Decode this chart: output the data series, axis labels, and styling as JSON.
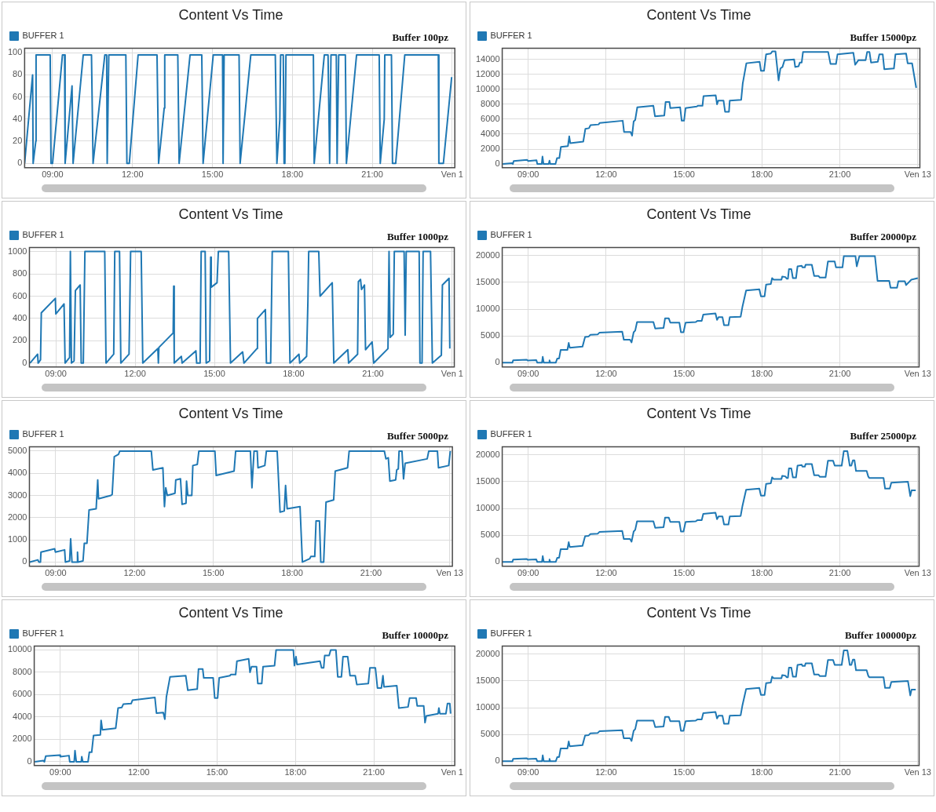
{
  "chart_data": [
    {
      "type": "line",
      "title": "Content Vs Time",
      "subtitle": "Buffer 100pz",
      "legend": "top left",
      "grid": true,
      "xlim": [
        7.95,
        24.1
      ],
      "xticks": [
        {
          "value": 9,
          "label": "09:00"
        },
        {
          "value": 12,
          "label": "12:00"
        },
        {
          "value": 15,
          "label": "15:00"
        },
        {
          "value": 18,
          "label": "18:00"
        },
        {
          "value": 21,
          "label": "21:00"
        },
        {
          "value": 24,
          "label": "Ven 1"
        }
      ],
      "ylim": [
        -4,
        104
      ],
      "yticks": [
        0,
        20,
        40,
        60,
        80,
        100
      ],
      "series": [
        {
          "name": "BUFFER 1",
          "color": "#1f78b4",
          "x": [
            7.95,
            8.25,
            8.27,
            8.37,
            8.38,
            8.91,
            8.94,
            9.0,
            9.37,
            9.45,
            9.47,
            9.73,
            9.77,
            10.15,
            10.46,
            10.52,
            10.96,
            11.03,
            11.05,
            11.11,
            11.75,
            11.79,
            11.88,
            12.21,
            12.92,
            12.98,
            13.19,
            13.21,
            13.7,
            13.75,
            14.16,
            14.6,
            14.65,
            15.03,
            15.38,
            15.4,
            15.44,
            16.0,
            16.04,
            16.44,
            17.36,
            17.42,
            17.53,
            17.56,
            17.66,
            17.69,
            17.72,
            17.76,
            18.79,
            18.82,
            19.2,
            19.34,
            19.4,
            19.45,
            19.65,
            19.68,
            19.74,
            19.99,
            20.03,
            20.41,
            21.26,
            21.3,
            21.45,
            21.47,
            21.72,
            21.76,
            21.88,
            22.22,
            23.48,
            23.5,
            23.67,
            23.98
          ],
          "values": [
            0,
            80,
            0,
            20,
            98,
            98,
            0,
            0,
            98,
            98,
            0,
            70,
            0,
            98,
            98,
            0,
            98,
            98,
            0,
            98,
            98,
            0,
            0,
            98,
            98,
            0,
            50,
            98,
            98,
            0,
            98,
            98,
            0,
            98,
            98,
            0,
            98,
            98,
            0,
            98,
            98,
            0,
            40,
            98,
            98,
            0,
            0,
            98,
            98,
            0,
            98,
            98,
            0,
            98,
            98,
            0,
            98,
            98,
            0,
            98,
            98,
            0,
            40,
            98,
            98,
            0,
            0,
            98,
            98,
            0,
            0,
            78
          ]
        }
      ]
    },
    {
      "type": "line",
      "title": "Content Vs Time",
      "subtitle": "Buffer 15000pz",
      "legend": "top left",
      "grid": true,
      "xlim": [
        8.0,
        24.08
      ],
      "xticks": [
        {
          "value": 9,
          "label": "09:00"
        },
        {
          "value": 12,
          "label": "12:00"
        },
        {
          "value": 15,
          "label": "15:00"
        },
        {
          "value": 18,
          "label": "18:00"
        },
        {
          "value": 21,
          "label": "21:00"
        },
        {
          "value": 24,
          "label": "Ven 13"
        }
      ],
      "ylim": [
        -500,
        15500
      ],
      "yticks": [
        0,
        2000,
        4000,
        6000,
        8000,
        10000,
        12000,
        14000
      ],
      "series": [
        {
          "name": "BUFFER 1",
          "color": "#1f78b4",
          "x": [
            8.02,
            8.38,
            8.41,
            8.44,
            8.96,
            9.0,
            9.32,
            9.35,
            9.52,
            9.55,
            9.59,
            9.79,
            9.82,
            9.85,
            10.05,
            10.11,
            10.2,
            10.26,
            10.53,
            10.58,
            10.62,
            11.12,
            11.2,
            11.34,
            11.4,
            11.71,
            11.75,
            12.64,
            12.69,
            12.94,
            13.0,
            13.06,
            13.12,
            13.2,
            13.82,
            13.88,
            14.24,
            14.29,
            14.44,
            14.47,
            14.85,
            14.91,
            15.0,
            15.06,
            15.49,
            15.53,
            15.71,
            15.75,
            16.22,
            16.27,
            16.32,
            16.52,
            16.58,
            16.73,
            16.76,
            17.2,
            17.26,
            17.4,
            17.91,
            17.96,
            18.08,
            18.16,
            18.34,
            18.4,
            18.52,
            18.64,
            18.71,
            18.79,
            18.87,
            19.24,
            19.28,
            19.41,
            19.46,
            19.53,
            19.58,
            20.55,
            20.64,
            20.85,
            20.91,
            21.52,
            21.59,
            21.71,
            21.99,
            22.05,
            22.14,
            22.2,
            22.46,
            22.52,
            22.65,
            22.71,
            23.08,
            23.14,
            23.55,
            23.61,
            23.78,
            23.94
          ],
          "values": [
            0,
            100,
            0,
            400,
            550,
            400,
            500,
            0,
            0,
            1000,
            0,
            0,
            450,
            0,
            0,
            800,
            800,
            2300,
            2400,
            3700,
            2800,
            3000,
            4700,
            4800,
            5200,
            5300,
            5500,
            5800,
            4300,
            4300,
            3800,
            5700,
            5900,
            7600,
            7800,
            6400,
            6500,
            8300,
            8300,
            7500,
            7600,
            5800,
            5800,
            7500,
            7700,
            7800,
            7800,
            9100,
            9200,
            8000,
            8500,
            8500,
            7000,
            7000,
            8500,
            8600,
            10800,
            13500,
            13700,
            12500,
            12500,
            14700,
            14800,
            15100,
            15100,
            11200,
            12800,
            13000,
            13900,
            14000,
            13000,
            13100,
            13600,
            13600,
            15000,
            15000,
            13400,
            13400,
            14700,
            14900,
            13300,
            13900,
            13900,
            15000,
            15000,
            13600,
            13700,
            14700,
            14700,
            12700,
            12800,
            14700,
            14800,
            13500,
            13500,
            10200
          ]
        }
      ]
    },
    {
      "type": "line",
      "title": "Content Vs Time",
      "subtitle": "Buffer 1000pz",
      "legend": "top left",
      "grid": true,
      "xlim": [
        8.0,
        24.08
      ],
      "xticks": [
        {
          "value": 9,
          "label": "09:00"
        },
        {
          "value": 12,
          "label": "12:00"
        },
        {
          "value": 15,
          "label": "15:00"
        },
        {
          "value": 18,
          "label": "18:00"
        },
        {
          "value": 21,
          "label": "21:00"
        },
        {
          "value": 24,
          "label": "Ven 1"
        }
      ],
      "ylim": [
        -35,
        1035
      ],
      "yticks": [
        0,
        200,
        400,
        600,
        800,
        1000
      ],
      "series": [
        {
          "name": "BUFFER 1",
          "color": "#1f78b4",
          "x": [
            8.02,
            8.31,
            8.33,
            8.42,
            8.45,
            8.98,
            9.0,
            9.31,
            9.35,
            9.52,
            9.55,
            9.59,
            9.69,
            9.74,
            9.92,
            9.96,
            10.04,
            10.1,
            10.85,
            10.9,
            11.19,
            11.23,
            11.41,
            11.46,
            11.77,
            11.83,
            12.23,
            12.29,
            12.86,
            12.88,
            12.9,
            13.44,
            13.46,
            13.48,
            13.75,
            13.78,
            14.3,
            14.33,
            14.46,
            14.5,
            14.65,
            14.69,
            14.82,
            14.86,
            14.88,
            15.1,
            15.15,
            15.54,
            15.61,
            16.07,
            16.12,
            16.61,
            16.63,
            16.93,
            16.97,
            17.13,
            17.19,
            17.8,
            17.86,
            18.2,
            18.23,
            18.49,
            18.54,
            18.57,
            18.95,
            19.0,
            19.46,
            19.52,
            20.05,
            20.08,
            20.42,
            20.45,
            20.53,
            20.57,
            20.68,
            20.72,
            20.97,
            21.03,
            21.57,
            21.61,
            21.65,
            21.77,
            21.81,
            22.18,
            22.22,
            22.26,
            22.75,
            22.78,
            22.86,
            22.9,
            23.18,
            23.25,
            23.59,
            23.63,
            23.88,
            23.91
          ],
          "values": [
            0,
            80,
            0,
            30,
            450,
            580,
            440,
            530,
            0,
            50,
            1000,
            0,
            20,
            650,
            700,
            0,
            0,
            1000,
            1000,
            0,
            80,
            1000,
            1000,
            0,
            80,
            1000,
            1000,
            0,
            130,
            0,
            140,
            270,
            690,
            0,
            60,
            0,
            110,
            0,
            0,
            1000,
            1000,
            0,
            20,
            950,
            680,
            720,
            1000,
            1000,
            0,
            100,
            0,
            130,
            400,
            480,
            0,
            0,
            1000,
            1000,
            0,
            80,
            0,
            60,
            560,
            1000,
            1000,
            600,
            720,
            0,
            120,
            0,
            80,
            730,
            750,
            660,
            700,
            120,
            190,
            0,
            130,
            1000,
            230,
            260,
            1000,
            1000,
            250,
            1000,
            1000,
            0,
            0,
            1000,
            1000,
            0,
            70,
            700,
            760,
            130
          ]
        }
      ]
    },
    {
      "type": "line",
      "title": "Content Vs Time",
      "subtitle": "Buffer 20000pz",
      "legend": "top left",
      "grid": true,
      "xlim": [
        8.0,
        24.05
      ],
      "xticks": [
        {
          "value": 9,
          "label": "09:00"
        },
        {
          "value": 12,
          "label": "12:00"
        },
        {
          "value": 15,
          "label": "15:00"
        },
        {
          "value": 18,
          "label": "18:00"
        },
        {
          "value": 21,
          "label": "21:00"
        },
        {
          "value": 24,
          "label": "Ven 13"
        }
      ],
      "ylim": [
        -800,
        21500
      ],
      "yticks": [
        0,
        5000,
        10000,
        15000,
        20000
      ],
      "series": [
        {
          "name": "BUFFER 1",
          "color": "#1f78b4",
          "x": [
            8.01,
            8.39,
            8.42,
            8.95,
            8.98,
            9.31,
            9.35,
            9.53,
            9.56,
            9.6,
            9.8,
            9.82,
            9.85,
            10.06,
            10.12,
            10.19,
            10.25,
            10.51,
            10.56,
            10.6,
            11.09,
            11.19,
            11.33,
            11.39,
            11.68,
            11.74,
            12.62,
            12.68,
            12.92,
            12.98,
            13.06,
            13.12,
            13.19,
            13.82,
            13.89,
            14.21,
            14.27,
            14.41,
            14.47,
            14.82,
            14.88,
            14.98,
            15.06,
            15.45,
            15.51,
            15.68,
            15.74,
            16.21,
            16.27,
            16.33,
            16.48,
            16.54,
            16.71,
            16.76,
            17.18,
            17.25,
            17.39,
            17.9,
            17.96,
            18.1,
            18.16,
            18.34,
            18.39,
            18.45,
            18.75,
            18.78,
            18.9,
            18.95,
            19.0,
            19.04,
            19.13,
            19.19,
            19.31,
            19.37,
            19.53,
            19.56,
            19.65,
            19.68,
            19.92,
            20.01,
            20.18,
            20.23,
            20.45,
            20.54,
            20.8,
            20.85,
            21.1,
            21.15,
            21.6,
            21.65,
            21.75,
            22.35,
            22.45,
            22.9,
            22.95,
            23.2,
            23.25,
            23.5,
            23.55,
            23.75,
            24.0
          ],
          "values": [
            0,
            0,
            450,
            550,
            400,
            500,
            0,
            0,
            1100,
            0,
            0,
            450,
            0,
            0,
            800,
            800,
            2400,
            2400,
            3700,
            2800,
            3000,
            4800,
            4900,
            5200,
            5300,
            5600,
            5800,
            4300,
            4300,
            3800,
            5700,
            6000,
            7600,
            7600,
            6400,
            6500,
            8300,
            8300,
            7500,
            7500,
            5700,
            5700,
            7500,
            7600,
            7800,
            7800,
            9000,
            9200,
            8000,
            8500,
            8500,
            7000,
            7000,
            8500,
            8600,
            10500,
            13500,
            13700,
            12400,
            12400,
            14600,
            14700,
            15800,
            15500,
            15500,
            16100,
            16000,
            15700,
            15700,
            17500,
            17500,
            15800,
            15800,
            18000,
            18100,
            17800,
            17800,
            18300,
            18300,
            16200,
            16200,
            15900,
            15900,
            18900,
            18900,
            17800,
            17800,
            19900,
            19900,
            18000,
            19900,
            19900,
            15300,
            15300,
            14000,
            14000,
            15200,
            15200,
            14500,
            15500,
            15800
          ]
        }
      ]
    },
    {
      "type": "line",
      "title": "Content Vs Time",
      "subtitle": "Buffer 5000pz",
      "legend": "top left",
      "grid": true,
      "xlim": [
        8.0,
        24.1
      ],
      "xticks": [
        {
          "value": 9,
          "label": "09:00"
        },
        {
          "value": 12,
          "label": "12:00"
        },
        {
          "value": 15,
          "label": "15:00"
        },
        {
          "value": 18,
          "label": "18:00"
        },
        {
          "value": 21,
          "label": "21:00"
        },
        {
          "value": 24,
          "label": "Ven 13"
        }
      ],
      "ylim": [
        -190,
        5190
      ],
      "yticks": [
        0,
        1000,
        2000,
        3000,
        4000,
        5000
      ],
      "series": [
        {
          "name": "BUFFER 1",
          "color": "#1f78b4",
          "x": [
            8.01,
            8.32,
            8.36,
            8.42,
            8.44,
            8.96,
            8.99,
            9.34,
            9.37,
            9.53,
            9.57,
            9.62,
            9.81,
            9.83,
            9.85,
            10.04,
            10.09,
            10.19,
            10.27,
            10.54,
            10.6,
            10.63,
            11.1,
            11.15,
            11.23,
            11.39,
            11.44,
            12.64,
            12.7,
            13.08,
            13.14,
            13.19,
            13.25,
            13.54,
            13.57,
            13.75,
            13.81,
            13.96,
            13.98,
            14.03,
            14.18,
            14.22,
            14.39,
            14.45,
            15.06,
            15.11,
            15.79,
            15.85,
            16.41,
            16.47,
            16.55,
            16.67,
            16.7,
            16.96,
            17.02,
            17.43,
            17.54,
            17.7,
            17.75,
            17.81,
            18.3,
            18.39,
            18.67,
            18.71,
            18.86,
            18.91,
            19.04,
            19.09,
            19.2,
            19.29,
            19.58,
            19.64,
            20.11,
            20.17,
            21.51,
            21.57,
            21.66,
            21.72,
            21.94,
            21.98,
            22.04,
            22.07,
            22.18,
            22.24,
            22.3,
            23.14,
            23.2,
            23.53,
            23.57,
            23.96,
            24.02
          ],
          "values": [
            0,
            100,
            0,
            0,
            450,
            600,
            450,
            550,
            0,
            50,
            1050,
            0,
            0,
            450,
            0,
            50,
            850,
            850,
            2350,
            2400,
            3700,
            2850,
            3000,
            3050,
            4750,
            4850,
            5000,
            5000,
            4150,
            4250,
            2500,
            3350,
            3000,
            3100,
            3700,
            3750,
            2600,
            2650,
            3650,
            3000,
            3000,
            4350,
            4400,
            5000,
            5000,
            3900,
            4100,
            5000,
            5000,
            3350,
            5000,
            5000,
            4250,
            4350,
            5000,
            5000,
            2250,
            2300,
            3450,
            2400,
            2500,
            0,
            150,
            250,
            250,
            1850,
            1850,
            0,
            0,
            2700,
            2800,
            4100,
            4250,
            5000,
            5000,
            4650,
            4700,
            3650,
            3700,
            4150,
            4200,
            5000,
            5000,
            3750,
            4450,
            4650,
            5000,
            5000,
            4250,
            4350,
            5000
          ]
        }
      ]
    },
    {
      "type": "line",
      "title": "Content Vs Time",
      "subtitle": "Buffer 25000pz",
      "legend": "top left",
      "grid": true,
      "xlim": [
        8.0,
        24.05
      ],
      "xticks": [
        {
          "value": 9,
          "label": "09:00"
        },
        {
          "value": 12,
          "label": "12:00"
        },
        {
          "value": 15,
          "label": "15:00"
        },
        {
          "value": 18,
          "label": "18:00"
        },
        {
          "value": 21,
          "label": "21:00"
        },
        {
          "value": 24,
          "label": "Ven 13"
        }
      ],
      "ylim": [
        -800,
        21500
      ],
      "yticks": [
        0,
        5000,
        10000,
        15000,
        20000
      ],
      "series": [
        {
          "name": "BUFFER 1",
          "color": "#1f78b4",
          "x": [
            8.01,
            8.39,
            8.42,
            8.95,
            8.98,
            9.31,
            9.35,
            9.53,
            9.56,
            9.6,
            9.8,
            9.82,
            9.85,
            10.06,
            10.12,
            10.19,
            10.25,
            10.51,
            10.56,
            10.6,
            11.09,
            11.19,
            11.33,
            11.39,
            11.68,
            11.74,
            12.62,
            12.68,
            12.92,
            12.98,
            13.06,
            13.12,
            13.19,
            13.82,
            13.89,
            14.21,
            14.27,
            14.41,
            14.47,
            14.82,
            14.88,
            14.98,
            15.06,
            15.45,
            15.51,
            15.68,
            15.74,
            16.21,
            16.27,
            16.33,
            16.48,
            16.54,
            16.71,
            16.76,
            17.18,
            17.25,
            17.39,
            17.9,
            17.96,
            18.1,
            18.16,
            18.34,
            18.39,
            18.45,
            18.75,
            18.78,
            18.9,
            18.95,
            19.0,
            19.04,
            19.13,
            19.19,
            19.31,
            19.37,
            19.53,
            19.56,
            19.65,
            19.68,
            19.92,
            20.01,
            20.18,
            20.23,
            20.45,
            20.54,
            20.74,
            20.8,
            21.07,
            21.15,
            21.29,
            21.38,
            21.44,
            21.5,
            21.56,
            21.62,
            22.03,
            22.09,
            22.13,
            22.68,
            22.74,
            22.92,
            22.98,
            23.62,
            23.71,
            23.76,
            23.92
          ],
          "values": [
            0,
            0,
            450,
            550,
            400,
            500,
            0,
            0,
            1100,
            0,
            0,
            450,
            0,
            0,
            800,
            800,
            2400,
            2400,
            3700,
            2800,
            3000,
            4800,
            4900,
            5200,
            5300,
            5600,
            5800,
            4300,
            4300,
            3800,
            5700,
            6000,
            7600,
            7600,
            6400,
            6500,
            8300,
            8300,
            7500,
            7500,
            5700,
            5700,
            7500,
            7600,
            7800,
            7800,
            9000,
            9200,
            8000,
            8500,
            8500,
            7000,
            7000,
            8500,
            8600,
            10500,
            13500,
            13700,
            12400,
            12400,
            14600,
            14700,
            15800,
            15500,
            15500,
            16100,
            16000,
            15700,
            15700,
            17500,
            17500,
            15800,
            15800,
            18000,
            18100,
            17800,
            17800,
            18300,
            18300,
            16200,
            16200,
            15900,
            15900,
            18900,
            18900,
            18000,
            18000,
            20700,
            20700,
            18000,
            18000,
            19000,
            19000,
            17000,
            17000,
            16000,
            15700,
            15700,
            13700,
            13700,
            14800,
            15000,
            12300,
            13400,
            13400
          ]
        }
      ]
    },
    {
      "type": "line",
      "title": "Content Vs Time",
      "subtitle": "Buffer 10000pz",
      "legend": "top left",
      "grid": true,
      "xlim": [
        8.0,
        24.1
      ],
      "xticks": [
        {
          "value": 9,
          "label": "09:00"
        },
        {
          "value": 12,
          "label": "12:00"
        },
        {
          "value": 15,
          "label": "15:00"
        },
        {
          "value": 18,
          "label": "18:00"
        },
        {
          "value": 21,
          "label": "21:00"
        },
        {
          "value": 24,
          "label": "Ven 1"
        }
      ],
      "ylim": [
        -340,
        10340
      ],
      "yticks": [
        0,
        2000,
        4000,
        6000,
        8000,
        10000
      ],
      "series": [
        {
          "name": "BUFFER 1",
          "color": "#1f78b4",
          "x": [
            8.02,
            8.35,
            8.39,
            8.44,
            8.98,
            9.0,
            9.33,
            9.36,
            9.53,
            9.56,
            9.61,
            9.8,
            9.82,
            9.86,
            10.06,
            10.11,
            10.2,
            10.27,
            10.53,
            10.56,
            10.61,
            11.12,
            11.21,
            11.35,
            11.41,
            11.71,
            11.76,
            12.62,
            12.68,
            12.94,
            13.0,
            13.06,
            13.2,
            13.8,
            13.88,
            14.24,
            14.29,
            14.45,
            14.49,
            14.85,
            14.91,
            15.02,
            15.08,
            15.49,
            15.53,
            15.71,
            15.76,
            16.21,
            16.26,
            16.32,
            16.51,
            16.56,
            16.71,
            16.76,
            17.2,
            17.26,
            17.92,
            17.96,
            18.02,
            18.06,
            18.94,
            19.0,
            19.08,
            19.12,
            19.29,
            19.35,
            19.55,
            19.62,
            19.76,
            19.82,
            20.0,
            20.09,
            20.29,
            20.35,
            20.79,
            20.85,
            21.06,
            21.14,
            21.29,
            21.35,
            21.39,
            21.88,
            21.96,
            22.31,
            22.37,
            22.62,
            22.66,
            22.91,
            22.96,
            23.01,
            23.46,
            23.49,
            23.53,
            23.76,
            23.82,
            23.91,
            23.94
          ],
          "values": [
            0,
            100,
            0,
            500,
            600,
            450,
            550,
            0,
            0,
            1000,
            0,
            0,
            450,
            0,
            0,
            850,
            850,
            2350,
            2400,
            3700,
            2850,
            3000,
            4800,
            4850,
            5150,
            5200,
            5500,
            5750,
            4350,
            4400,
            3800,
            5800,
            7600,
            7700,
            6400,
            6500,
            8300,
            8300,
            7500,
            7500,
            5700,
            5700,
            7500,
            7700,
            7800,
            7800,
            9000,
            9200,
            8000,
            8500,
            8500,
            7000,
            7000,
            8500,
            8600,
            10000,
            10000,
            8600,
            9400,
            8700,
            9000,
            8400,
            8400,
            9500,
            9500,
            10000,
            10000,
            7600,
            7600,
            9400,
            9400,
            7700,
            7700,
            6900,
            7000,
            8400,
            8400,
            6600,
            6600,
            7700,
            6700,
            6800,
            4800,
            4900,
            5700,
            5700,
            5000,
            5000,
            3500,
            4100,
            4300,
            4800,
            4300,
            4300,
            5200,
            5200,
            4300
          ]
        }
      ]
    },
    {
      "type": "line",
      "title": "Content Vs Time",
      "subtitle": "Buffer 100000pz",
      "legend": "top left",
      "grid": true,
      "xlim": [
        8.0,
        24.05
      ],
      "xticks": [
        {
          "value": 9,
          "label": "09:00"
        },
        {
          "value": 12,
          "label": "12:00"
        },
        {
          "value": 15,
          "label": "15:00"
        },
        {
          "value": 18,
          "label": "18:00"
        },
        {
          "value": 21,
          "label": "21:00"
        },
        {
          "value": 24,
          "label": "Ven 13"
        }
      ],
      "ylim": [
        -800,
        21500
      ],
      "yticks": [
        0,
        5000,
        10000,
        15000,
        20000
      ],
      "series": [
        {
          "name": "BUFFER 1",
          "color": "#1f78b4",
          "x": [
            8.01,
            8.39,
            8.42,
            8.95,
            8.98,
            9.31,
            9.35,
            9.53,
            9.56,
            9.6,
            9.8,
            9.82,
            9.85,
            10.06,
            10.12,
            10.19,
            10.25,
            10.51,
            10.56,
            10.6,
            11.09,
            11.19,
            11.33,
            11.39,
            11.68,
            11.74,
            12.62,
            12.68,
            12.92,
            12.98,
            13.06,
            13.12,
            13.19,
            13.82,
            13.89,
            14.21,
            14.27,
            14.41,
            14.47,
            14.82,
            14.88,
            14.98,
            15.06,
            15.45,
            15.51,
            15.68,
            15.74,
            16.21,
            16.27,
            16.33,
            16.48,
            16.54,
            16.71,
            16.76,
            17.18,
            17.25,
            17.39,
            17.9,
            17.96,
            18.1,
            18.16,
            18.34,
            18.39,
            18.45,
            18.75,
            18.78,
            18.9,
            18.95,
            19.0,
            19.04,
            19.13,
            19.19,
            19.31,
            19.37,
            19.53,
            19.56,
            19.65,
            19.68,
            19.92,
            20.01,
            20.18,
            20.23,
            20.45,
            20.54,
            20.74,
            20.8,
            21.07,
            21.15,
            21.29,
            21.38,
            21.44,
            21.5,
            21.56,
            21.62,
            22.03,
            22.09,
            22.13,
            22.68,
            22.74,
            22.92,
            22.98,
            23.62,
            23.71,
            23.76,
            23.92
          ],
          "values": [
            0,
            0,
            450,
            550,
            400,
            500,
            0,
            0,
            1100,
            0,
            0,
            450,
            0,
            0,
            800,
            800,
            2400,
            2400,
            3700,
            2800,
            3000,
            4800,
            4900,
            5200,
            5300,
            5600,
            5800,
            4300,
            4300,
            3800,
            5700,
            6000,
            7600,
            7600,
            6400,
            6500,
            8300,
            8300,
            7500,
            7500,
            5700,
            5700,
            7500,
            7600,
            7800,
            7800,
            9000,
            9200,
            8000,
            8500,
            8500,
            7000,
            7000,
            8500,
            8600,
            10500,
            13500,
            13700,
            12400,
            12400,
            14600,
            14700,
            15800,
            15500,
            15500,
            16100,
            16000,
            15700,
            15700,
            17500,
            17500,
            15800,
            15800,
            18000,
            18100,
            17800,
            17800,
            18300,
            18300,
            16200,
            16200,
            15900,
            15900,
            18900,
            18900,
            18000,
            18000,
            20700,
            20700,
            18000,
            18000,
            19000,
            19000,
            17000,
            17000,
            16000,
            15700,
            15700,
            13700,
            13700,
            14800,
            15000,
            12300,
            13400,
            13400
          ]
        }
      ]
    }
  ]
}
